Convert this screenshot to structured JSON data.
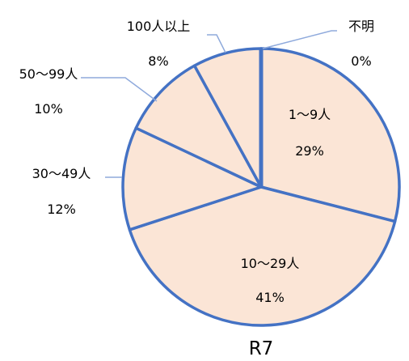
{
  "chart_data": {
    "type": "pie",
    "title": "R7",
    "categories": [
      "1～9人",
      "10～29人",
      "30～49人",
      "50～99人",
      "100人以上",
      "不明"
    ],
    "values": [
      29,
      41,
      12,
      10,
      8,
      0
    ],
    "value_labels": [
      "29%",
      "41%",
      "12%",
      "10%",
      "8%",
      "0%"
    ],
    "colors": {
      "fill": "#FBE5D6",
      "stroke": "#4472C4",
      "leader": "#8FAADC"
    },
    "start": "12 o'clock",
    "direction": "clockwise",
    "legend": "none"
  }
}
